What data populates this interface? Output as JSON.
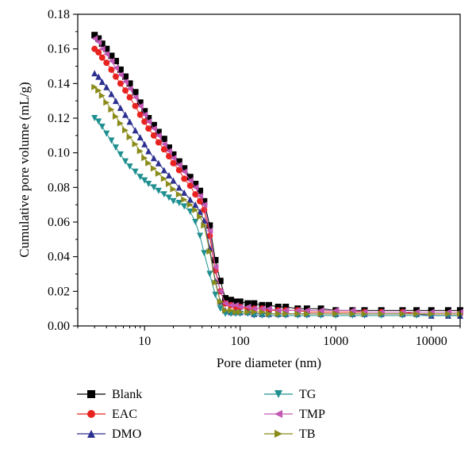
{
  "chart_data": {
    "type": "line",
    "xlabel": "Pore diameter (nm)",
    "ylabel": "Cumulative pore volume (mL/g)",
    "xscale": "log",
    "xlim": [
      2,
      20000
    ],
    "ylim": [
      0,
      0.18
    ],
    "x_ticks": [
      10,
      100,
      1000,
      10000
    ],
    "x_tick_labels": [
      "10",
      "100",
      "1000",
      "10000"
    ],
    "y_ticks": [
      0.0,
      0.02,
      0.04,
      0.06,
      0.08,
      0.1,
      0.12,
      0.14,
      0.16,
      0.18
    ],
    "y_tick_labels": [
      "0.00",
      "0.02",
      "0.04",
      "0.06",
      "0.08",
      "0.10",
      "0.12",
      "0.14",
      "0.16",
      "0.18"
    ],
    "grid": false,
    "legend_position": "bottom",
    "series": [
      {
        "name": "Blank",
        "color": "#000000",
        "marker": "square",
        "x": [
          3,
          3.3,
          3.6,
          4,
          4.5,
          5,
          5.6,
          6.3,
          7,
          8,
          9,
          10,
          11,
          12.5,
          14,
          16,
          18,
          20,
          23,
          26,
          30,
          34,
          38,
          42,
          48,
          55,
          62,
          70,
          80,
          90,
          100,
          120,
          140,
          170,
          200,
          250,
          300,
          400,
          500,
          700,
          1000,
          1500,
          2000,
          3000,
          5000,
          7000,
          10000,
          15000,
          20000
        ],
        "y": [
          0.168,
          0.166,
          0.163,
          0.16,
          0.156,
          0.153,
          0.148,
          0.144,
          0.14,
          0.135,
          0.129,
          0.124,
          0.12,
          0.116,
          0.112,
          0.108,
          0.103,
          0.099,
          0.095,
          0.091,
          0.086,
          0.082,
          0.078,
          0.072,
          0.058,
          0.038,
          0.026,
          0.016,
          0.015,
          0.014,
          0.014,
          0.013,
          0.013,
          0.012,
          0.012,
          0.011,
          0.011,
          0.01,
          0.01,
          0.01,
          0.009,
          0.009,
          0.009,
          0.009,
          0.009,
          0.009,
          0.009,
          0.009,
          0.009
        ]
      },
      {
        "name": "EAC",
        "color": "#e8231f",
        "marker": "circle",
        "x": [
          3,
          3.3,
          3.6,
          4,
          4.5,
          5,
          5.6,
          6.3,
          7,
          8,
          9,
          10,
          11,
          12.5,
          14,
          16,
          18,
          20,
          23,
          26,
          30,
          34,
          38,
          42,
          48,
          55,
          62,
          70,
          80,
          90,
          100,
          120,
          140,
          170,
          200,
          250,
          300,
          400,
          500,
          700,
          1000,
          1500,
          2000,
          3000,
          5000,
          7000,
          10000,
          15000,
          20000
        ],
        "y": [
          0.16,
          0.158,
          0.155,
          0.152,
          0.148,
          0.144,
          0.14,
          0.136,
          0.132,
          0.127,
          0.122,
          0.118,
          0.114,
          0.11,
          0.106,
          0.102,
          0.098,
          0.094,
          0.09,
          0.085,
          0.081,
          0.076,
          0.072,
          0.067,
          0.052,
          0.032,
          0.02,
          0.013,
          0.012,
          0.011,
          0.011,
          0.01,
          0.01,
          0.01,
          0.009,
          0.009,
          0.009,
          0.009,
          0.008,
          0.008,
          0.008,
          0.008,
          0.008,
          0.008,
          0.008,
          0.007,
          0.007,
          0.007,
          0.007
        ]
      },
      {
        "name": "DMO",
        "color": "#2b2f8f",
        "marker": "triangle-up",
        "x": [
          3,
          3.3,
          3.6,
          4,
          4.5,
          5,
          5.6,
          6.3,
          7,
          8,
          9,
          10,
          11,
          12.5,
          14,
          16,
          18,
          20,
          23,
          26,
          30,
          34,
          38,
          42,
          48,
          55,
          62,
          70,
          80,
          90,
          100,
          120,
          140,
          170,
          200,
          250,
          300,
          400,
          500,
          700,
          1000,
          1500,
          2000,
          3000,
          5000,
          7000,
          10000,
          15000,
          20000
        ],
        "y": [
          0.146,
          0.144,
          0.141,
          0.138,
          0.134,
          0.13,
          0.126,
          0.122,
          0.118,
          0.113,
          0.109,
          0.105,
          0.101,
          0.097,
          0.094,
          0.09,
          0.087,
          0.084,
          0.08,
          0.077,
          0.073,
          0.07,
          0.066,
          0.061,
          0.045,
          0.026,
          0.014,
          0.009,
          0.008,
          0.008,
          0.008,
          0.008,
          0.007,
          0.007,
          0.007,
          0.007,
          0.007,
          0.007,
          0.007,
          0.007,
          0.007,
          0.007,
          0.007,
          0.007,
          0.007,
          0.007,
          0.006,
          0.006,
          0.006
        ]
      },
      {
        "name": "TG",
        "color": "#1f8f8f",
        "marker": "triangle-down",
        "x": [
          3,
          3.3,
          3.6,
          4,
          4.5,
          5,
          5.6,
          6.3,
          7,
          8,
          9,
          10,
          11,
          12.5,
          14,
          16,
          18,
          20,
          23,
          26,
          30,
          34,
          38,
          42,
          48,
          55,
          62,
          70,
          80,
          90,
          100,
          120,
          140,
          170,
          200,
          250,
          300,
          400,
          500,
          700,
          1000,
          1500,
          2000,
          3000,
          5000,
          7000,
          10000,
          15000,
          20000
        ],
        "y": [
          0.12,
          0.118,
          0.115,
          0.111,
          0.107,
          0.103,
          0.099,
          0.095,
          0.092,
          0.089,
          0.086,
          0.084,
          0.082,
          0.08,
          0.078,
          0.076,
          0.074,
          0.072,
          0.071,
          0.069,
          0.066,
          0.06,
          0.052,
          0.042,
          0.03,
          0.018,
          0.01,
          0.007,
          0.007,
          0.007,
          0.007,
          0.007,
          0.006,
          0.006,
          0.006,
          0.006,
          0.006,
          0.006,
          0.006,
          0.006,
          0.006,
          0.006,
          0.006,
          0.006,
          0.006,
          0.006,
          0.006,
          0.006,
          0.006
        ]
      },
      {
        "name": "TMP",
        "color": "#c257b4",
        "marker": "triangle-left",
        "x": [
          3,
          3.3,
          3.6,
          4,
          4.5,
          5,
          5.6,
          6.3,
          7,
          8,
          9,
          10,
          11,
          12.5,
          14,
          16,
          18,
          20,
          23,
          26,
          30,
          34,
          38,
          42,
          48,
          55,
          62,
          70,
          80,
          90,
          100,
          120,
          140,
          170,
          200,
          250,
          300,
          400,
          500,
          700,
          1000,
          1500,
          2000,
          3000,
          5000,
          7000,
          10000,
          15000,
          20000
        ],
        "y": [
          0.166,
          0.164,
          0.16,
          0.157,
          0.153,
          0.149,
          0.145,
          0.141,
          0.137,
          0.132,
          0.127,
          0.122,
          0.118,
          0.114,
          0.11,
          0.105,
          0.101,
          0.097,
          0.093,
          0.089,
          0.084,
          0.08,
          0.075,
          0.07,
          0.055,
          0.034,
          0.02,
          0.013,
          0.012,
          0.012,
          0.011,
          0.011,
          0.01,
          0.01,
          0.01,
          0.009,
          0.009,
          0.009,
          0.009,
          0.009,
          0.009,
          0.009,
          0.008,
          0.008,
          0.008,
          0.008,
          0.008,
          0.008,
          0.008
        ]
      },
      {
        "name": "TB",
        "color": "#8b8b1a",
        "marker": "triangle-right",
        "x": [
          3,
          3.3,
          3.6,
          4,
          4.5,
          5,
          5.6,
          6.3,
          7,
          8,
          9,
          10,
          11,
          12.5,
          14,
          16,
          18,
          20,
          23,
          26,
          30,
          34,
          38,
          42,
          48,
          55,
          62,
          70,
          80,
          90,
          100,
          120,
          140,
          170,
          200,
          250,
          300,
          400,
          500,
          700,
          1000,
          1500,
          2000,
          3000,
          5000,
          7000,
          10000,
          15000,
          20000
        ],
        "y": [
          0.138,
          0.136,
          0.133,
          0.129,
          0.125,
          0.121,
          0.117,
          0.113,
          0.109,
          0.105,
          0.101,
          0.097,
          0.094,
          0.091,
          0.088,
          0.085,
          0.082,
          0.079,
          0.076,
          0.073,
          0.07,
          0.067,
          0.063,
          0.058,
          0.043,
          0.025,
          0.014,
          0.009,
          0.009,
          0.008,
          0.008,
          0.008,
          0.008,
          0.008,
          0.007,
          0.007,
          0.007,
          0.007,
          0.007,
          0.007,
          0.007,
          0.007,
          0.007,
          0.007,
          0.007,
          0.007,
          0.007,
          0.007,
          0.007
        ]
      }
    ]
  }
}
